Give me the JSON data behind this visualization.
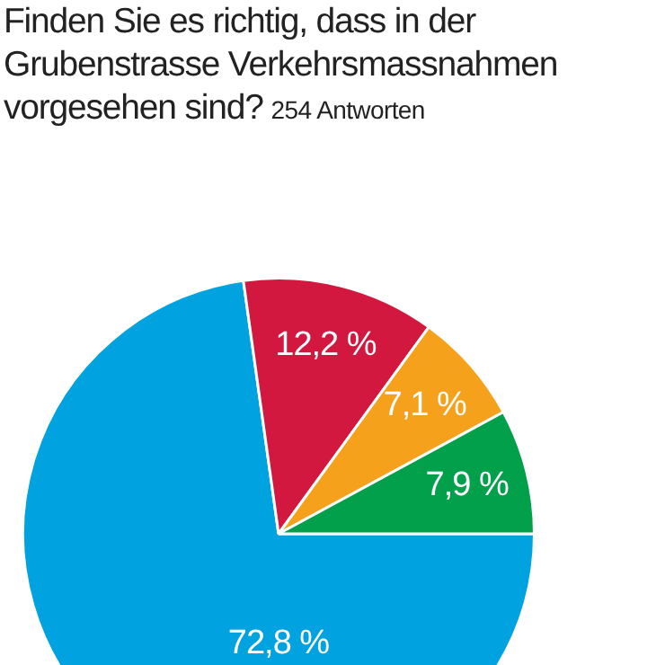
{
  "chart_data": {
    "type": "pie",
    "title": "Finden Sie es richtig, dass in der Grubenstrasse Verkehrsmassnahmen vorgesehen sind?",
    "subtitle": "254 Antworten",
    "categories": [
      null,
      null,
      null,
      null
    ],
    "values": [
      72.8,
      12.2,
      7.1,
      7.9
    ],
    "colors": [
      "#00a3e0",
      "#d3183f",
      "#f5a11c",
      "#02a04b"
    ],
    "value_labels": [
      "72,8 %",
      "12,2 %",
      "7,1 %",
      "7,9 %"
    ],
    "legend": false
  }
}
